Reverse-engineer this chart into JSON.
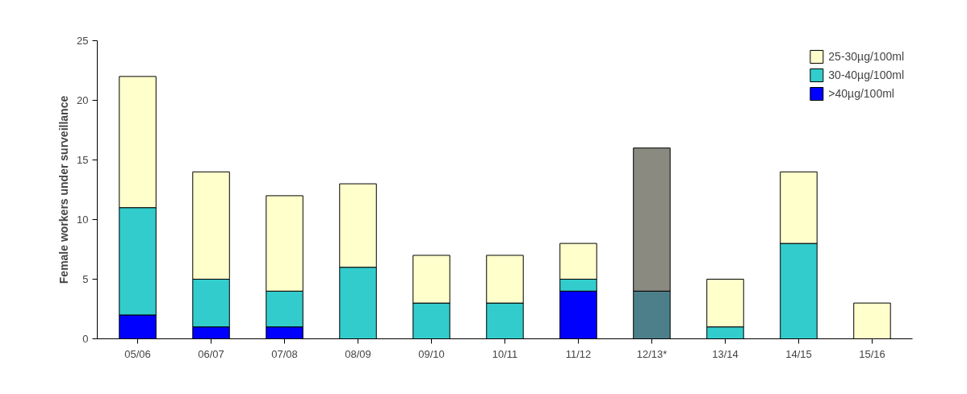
{
  "chart_data": {
    "type": "bar",
    "stacked": true,
    "ylabel": "Female workers under surveillance",
    "categories": [
      "05/06",
      "06/07",
      "07/08",
      "08/09",
      "09/10",
      "10/11",
      "11/12",
      "12/13*",
      "13/14",
      "14/15",
      "15/16"
    ],
    "series": [
      {
        "name": ">40µg/100ml",
        "color": "#0000ff",
        "values": [
          2,
          1,
          1,
          0,
          0,
          0,
          4,
          0,
          0,
          0,
          0
        ]
      },
      {
        "name": "30-40µg/100ml",
        "color": "#33cccc",
        "colors": [
          "#33cccc",
          "#33cccc",
          "#33cccc",
          "#33cccc",
          "#33cccc",
          "#33cccc",
          "#33cccc",
          "#4d7f8a",
          "#33cccc",
          "#33cccc",
          "#33cccc"
        ],
        "values": [
          9,
          4,
          3,
          6,
          3,
          3,
          1,
          4,
          1,
          8,
          0
        ]
      },
      {
        "name": "25-30µg/100ml",
        "color": "#ffffcc",
        "colors": [
          "#ffffcc",
          "#ffffcc",
          "#ffffcc",
          "#ffffcc",
          "#ffffcc",
          "#ffffcc",
          "#ffffcc",
          "#8a8a80",
          "#ffffcc",
          "#ffffcc",
          "#ffffcc"
        ],
        "values": [
          11,
          9,
          8,
          7,
          4,
          4,
          3,
          12,
          4,
          6,
          3
        ]
      }
    ],
    "ylim": [
      0,
      25
    ],
    "yticks": [
      0,
      5,
      10,
      15,
      20,
      25
    ],
    "grid": false,
    "legend": "top right"
  }
}
